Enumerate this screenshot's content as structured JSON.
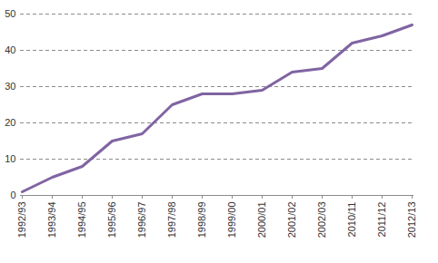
{
  "chart_data": {
    "type": "line",
    "categories": [
      "1992/93",
      "1993/94",
      "1994/95",
      "1995/96",
      "1996/97",
      "1997/98",
      "1998/99",
      "1999/00",
      "2000/01",
      "2001/02",
      "2002/03",
      "2010/11",
      "2011/12",
      "2012/13"
    ],
    "values": [
      1,
      5,
      8,
      15,
      17,
      25,
      28,
      28,
      29,
      34,
      35,
      42,
      44,
      47
    ],
    "color": "#8064a2",
    "ylim": [
      0,
      50
    ],
    "yticks": [
      0,
      10,
      20,
      30,
      40,
      50
    ],
    "grid": true
  }
}
